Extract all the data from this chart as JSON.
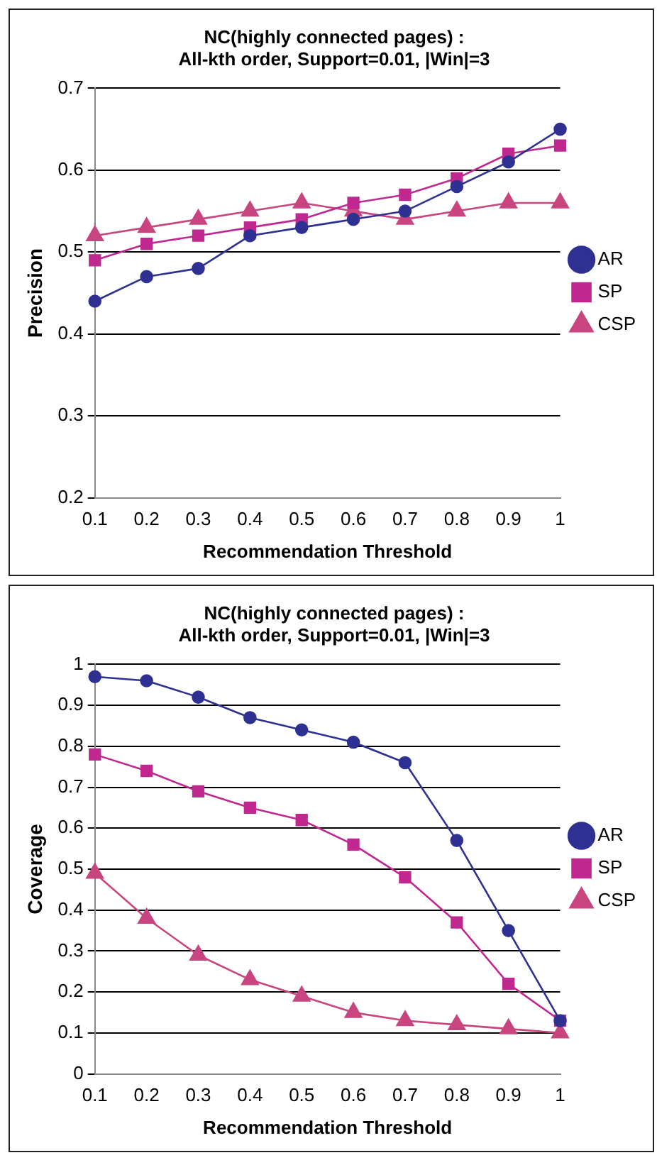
{
  "chart_data": [
    {
      "type": "line",
      "title": [
        "NC(highly connected pages) :",
        "All-kth order, Support=0.01, |Win|=3"
      ],
      "xlabel": "Recommendation Threshold",
      "ylabel": "Precision",
      "categories": [
        "0.1",
        "0.2",
        "0.3",
        "0.4",
        "0.5",
        "0.6",
        "0.7",
        "0.8",
        "0.9",
        "1"
      ],
      "ylim": [
        0.2,
        0.7
      ],
      "yticks": [
        0.2,
        0.3,
        0.4,
        0.5,
        0.6,
        0.7
      ],
      "grid": "y",
      "legend": "right",
      "series": [
        {
          "name": "AR",
          "color": "#2e3192",
          "marker": "circle",
          "values": [
            0.44,
            0.47,
            0.48,
            0.52,
            0.53,
            0.54,
            0.55,
            0.58,
            0.61,
            0.65
          ]
        },
        {
          "name": "SP",
          "color": "#c0288f",
          "marker": "square",
          "values": [
            0.49,
            0.51,
            0.52,
            0.53,
            0.54,
            0.56,
            0.57,
            0.59,
            0.62,
            0.63
          ]
        },
        {
          "name": "CSP",
          "color": "#c8457f",
          "marker": "triangle",
          "values": [
            0.52,
            0.53,
            0.54,
            0.55,
            0.56,
            0.55,
            0.54,
            0.55,
            0.56,
            0.56
          ]
        }
      ]
    },
    {
      "type": "line",
      "title": [
        "NC(highly connected pages) :",
        "All-kth order, Support=0.01, |Win|=3"
      ],
      "xlabel": "Recommendation Threshold",
      "ylabel": "Coverage",
      "categories": [
        "0.1",
        "0.2",
        "0.3",
        "0.4",
        "0.5",
        "0.6",
        "0.7",
        "0.8",
        "0.9",
        "1"
      ],
      "ylim": [
        0,
        1
      ],
      "yticks": [
        0,
        0.1,
        0.2,
        0.3,
        0.4,
        0.5,
        0.6,
        0.7,
        0.8,
        0.9,
        1
      ],
      "grid": "y",
      "legend": "right",
      "series": [
        {
          "name": "AR",
          "color": "#2e3192",
          "marker": "circle",
          "values": [
            0.97,
            0.96,
            0.92,
            0.87,
            0.84,
            0.81,
            0.76,
            0.57,
            0.35,
            0.13
          ]
        },
        {
          "name": "SP",
          "color": "#c0288f",
          "marker": "square",
          "values": [
            0.78,
            0.74,
            0.69,
            0.65,
            0.62,
            0.56,
            0.48,
            0.37,
            0.22,
            0.13
          ]
        },
        {
          "name": "CSP",
          "color": "#c8457f",
          "marker": "triangle",
          "values": [
            0.49,
            0.38,
            0.29,
            0.23,
            0.19,
            0.15,
            0.13,
            0.12,
            0.11,
            0.1
          ]
        }
      ]
    }
  ]
}
